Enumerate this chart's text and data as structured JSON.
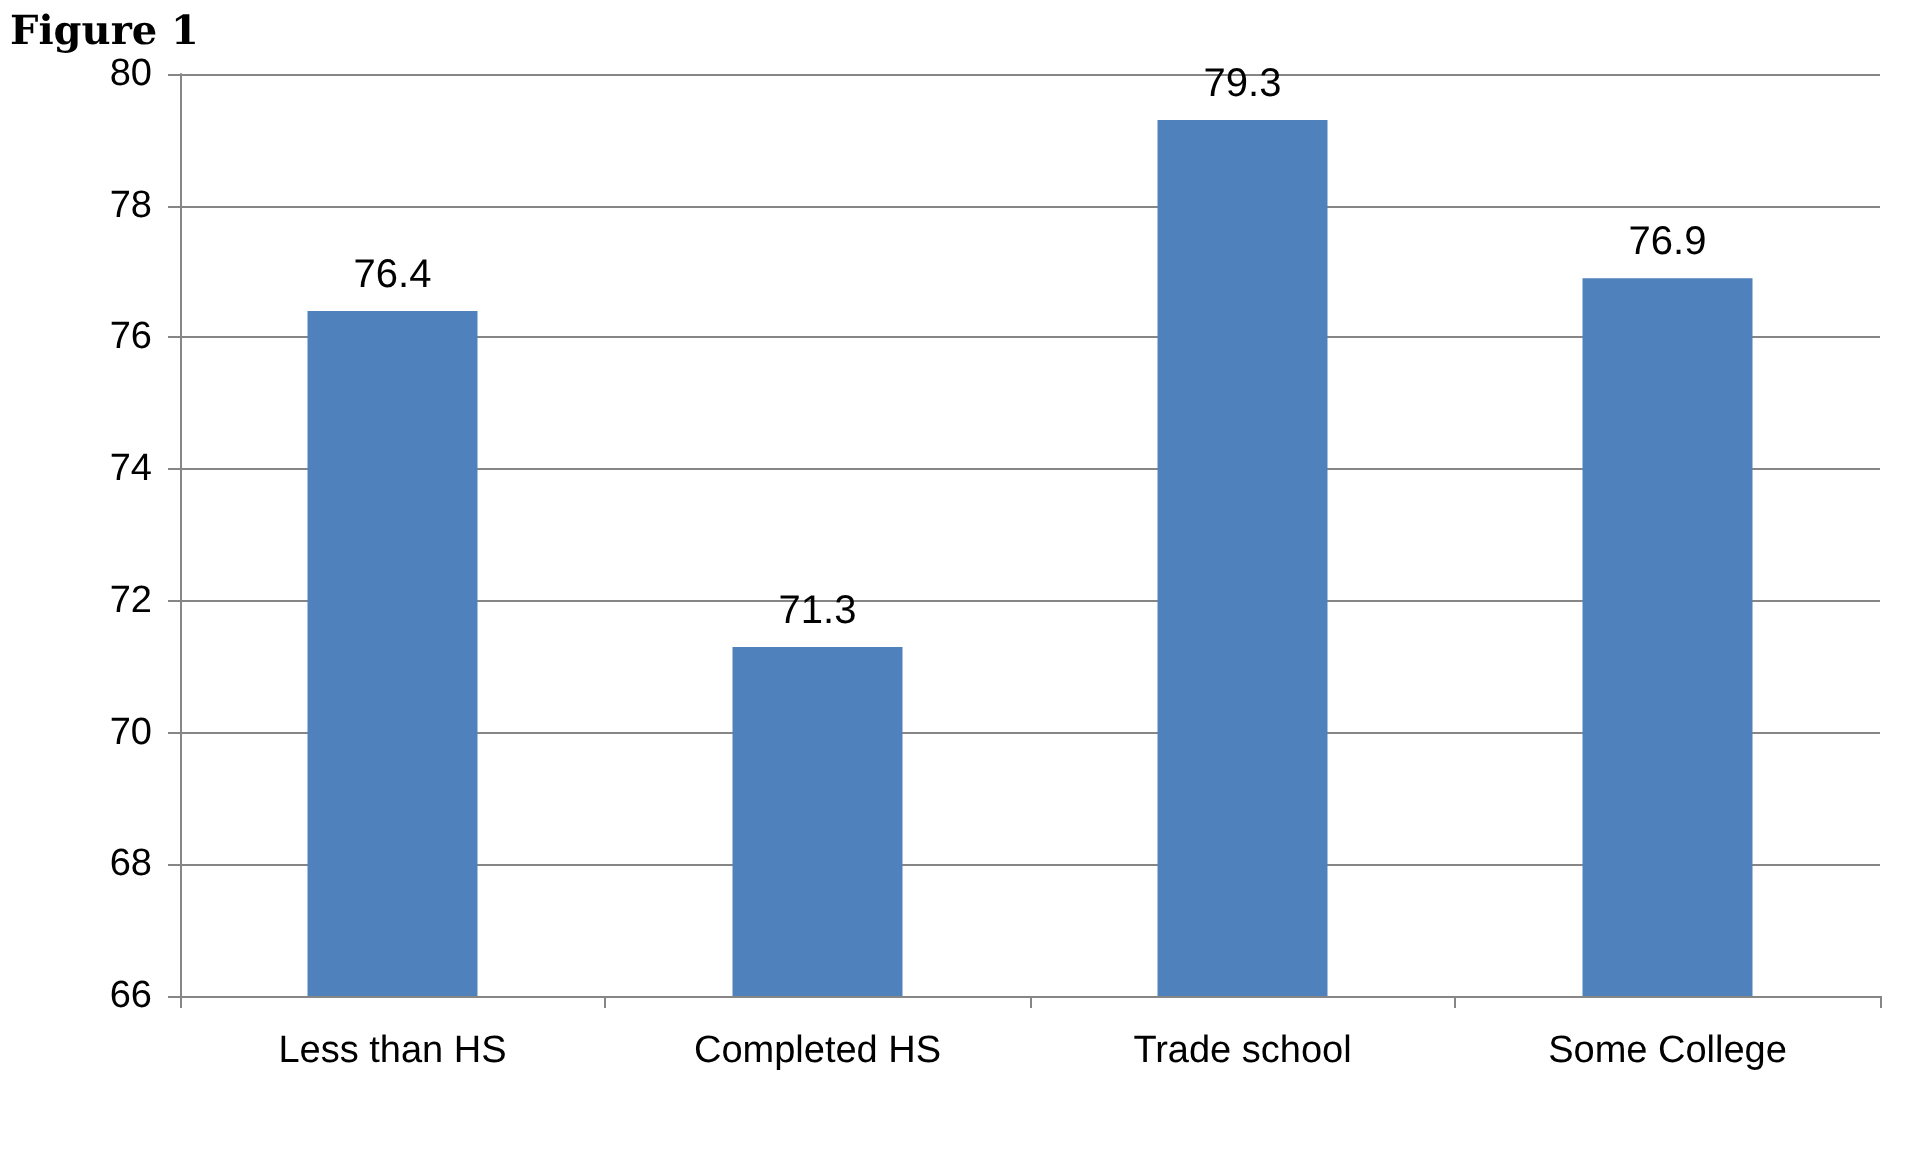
{
  "chart_data": {
    "type": "bar",
    "title": "Figure 1",
    "categories": [
      "Less than HS",
      "Completed HS",
      "Trade school",
      "Some College"
    ],
    "values": [
      76.4,
      71.3,
      79.3,
      76.9
    ],
    "color": "#4f81bd",
    "ylim": [
      66,
      80
    ],
    "yticks": [
      66,
      68,
      70,
      72,
      74,
      76,
      78,
      80
    ],
    "grid": "y",
    "data_labels": true
  }
}
